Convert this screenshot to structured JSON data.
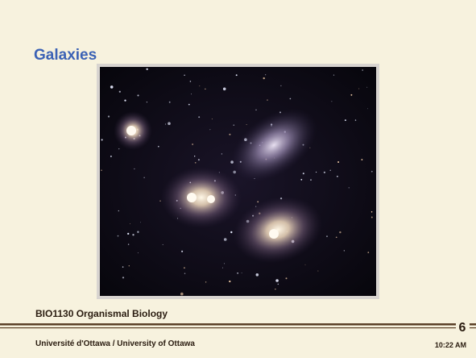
{
  "slide": {
    "title": "Galaxies",
    "course": "BIO1130 Organismal Biology",
    "university": "Université d'Ottawa / University of Ottawa",
    "page_number": "6",
    "time": "10:22 AM"
  }
}
